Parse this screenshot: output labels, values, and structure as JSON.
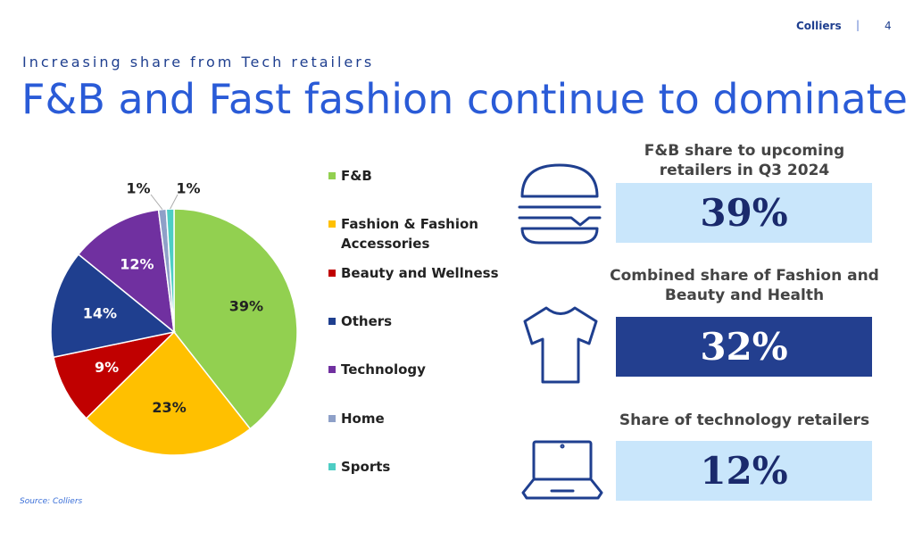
{
  "header": {
    "brand": "Colliers",
    "separator": "|",
    "page_number": "4"
  },
  "subtitle": "Increasing share from Tech retailers",
  "title": "F&B and Fast fashion continue to dominate",
  "source": "Source: Colliers",
  "chart_data": {
    "type": "pie",
    "categories": [
      "F&B",
      "Fashion & Fashion Accessories",
      "Beauty and Wellness",
      "Others",
      "Technology",
      "Home",
      "Sports"
    ],
    "values": [
      39,
      23,
      9,
      14,
      12,
      1,
      1
    ],
    "value_labels": [
      "39%",
      "23%",
      "9%",
      "14%",
      "12%",
      "1%",
      "1%"
    ],
    "colors": [
      "#92d050",
      "#ffc000",
      "#c00000",
      "#1f3f8f",
      "#7030a0",
      "#8ea0c8",
      "#4ecdc4"
    ],
    "legend": "right"
  },
  "stats": [
    {
      "title": "F&B share to upcoming retailers in Q3 2024",
      "value": "39%"
    },
    {
      "title": "Combined share of Fashion and Beauty and Health",
      "value": "32%"
    },
    {
      "title": "Share of technology retailers",
      "value": "12%"
    }
  ]
}
